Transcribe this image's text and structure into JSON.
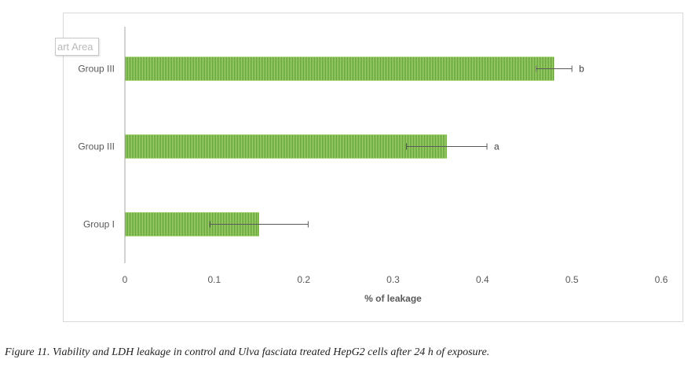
{
  "tooltip_text": "art Area",
  "caption": "Figure 11. Viability and LDH leakage in control and Ulva fasciata treated HepG2 cells after 24 h of exposure.",
  "chart_data": {
    "type": "bar",
    "orientation": "horizontal",
    "categories": [
      "Group III",
      "Group III",
      "Group I"
    ],
    "values": [
      0.48,
      0.36,
      0.15
    ],
    "error_low": [
      0.02,
      0.045,
      0.055
    ],
    "error_high": [
      0.02,
      0.045,
      0.055
    ],
    "significance_labels": [
      "b",
      "a",
      ""
    ],
    "xlabel": "% of leakage",
    "ylabel": "",
    "xlim": [
      0,
      0.6
    ],
    "xticks": [
      "0",
      "0.1",
      "0.2",
      "0.3",
      "0.4",
      "0.5",
      "0.6"
    ],
    "grid": false,
    "bar_color": "#92d050",
    "bar_stripe_color": "#5a9a2a",
    "error_bar_color": "#595959",
    "axis_color": "#a6a6a6"
  }
}
